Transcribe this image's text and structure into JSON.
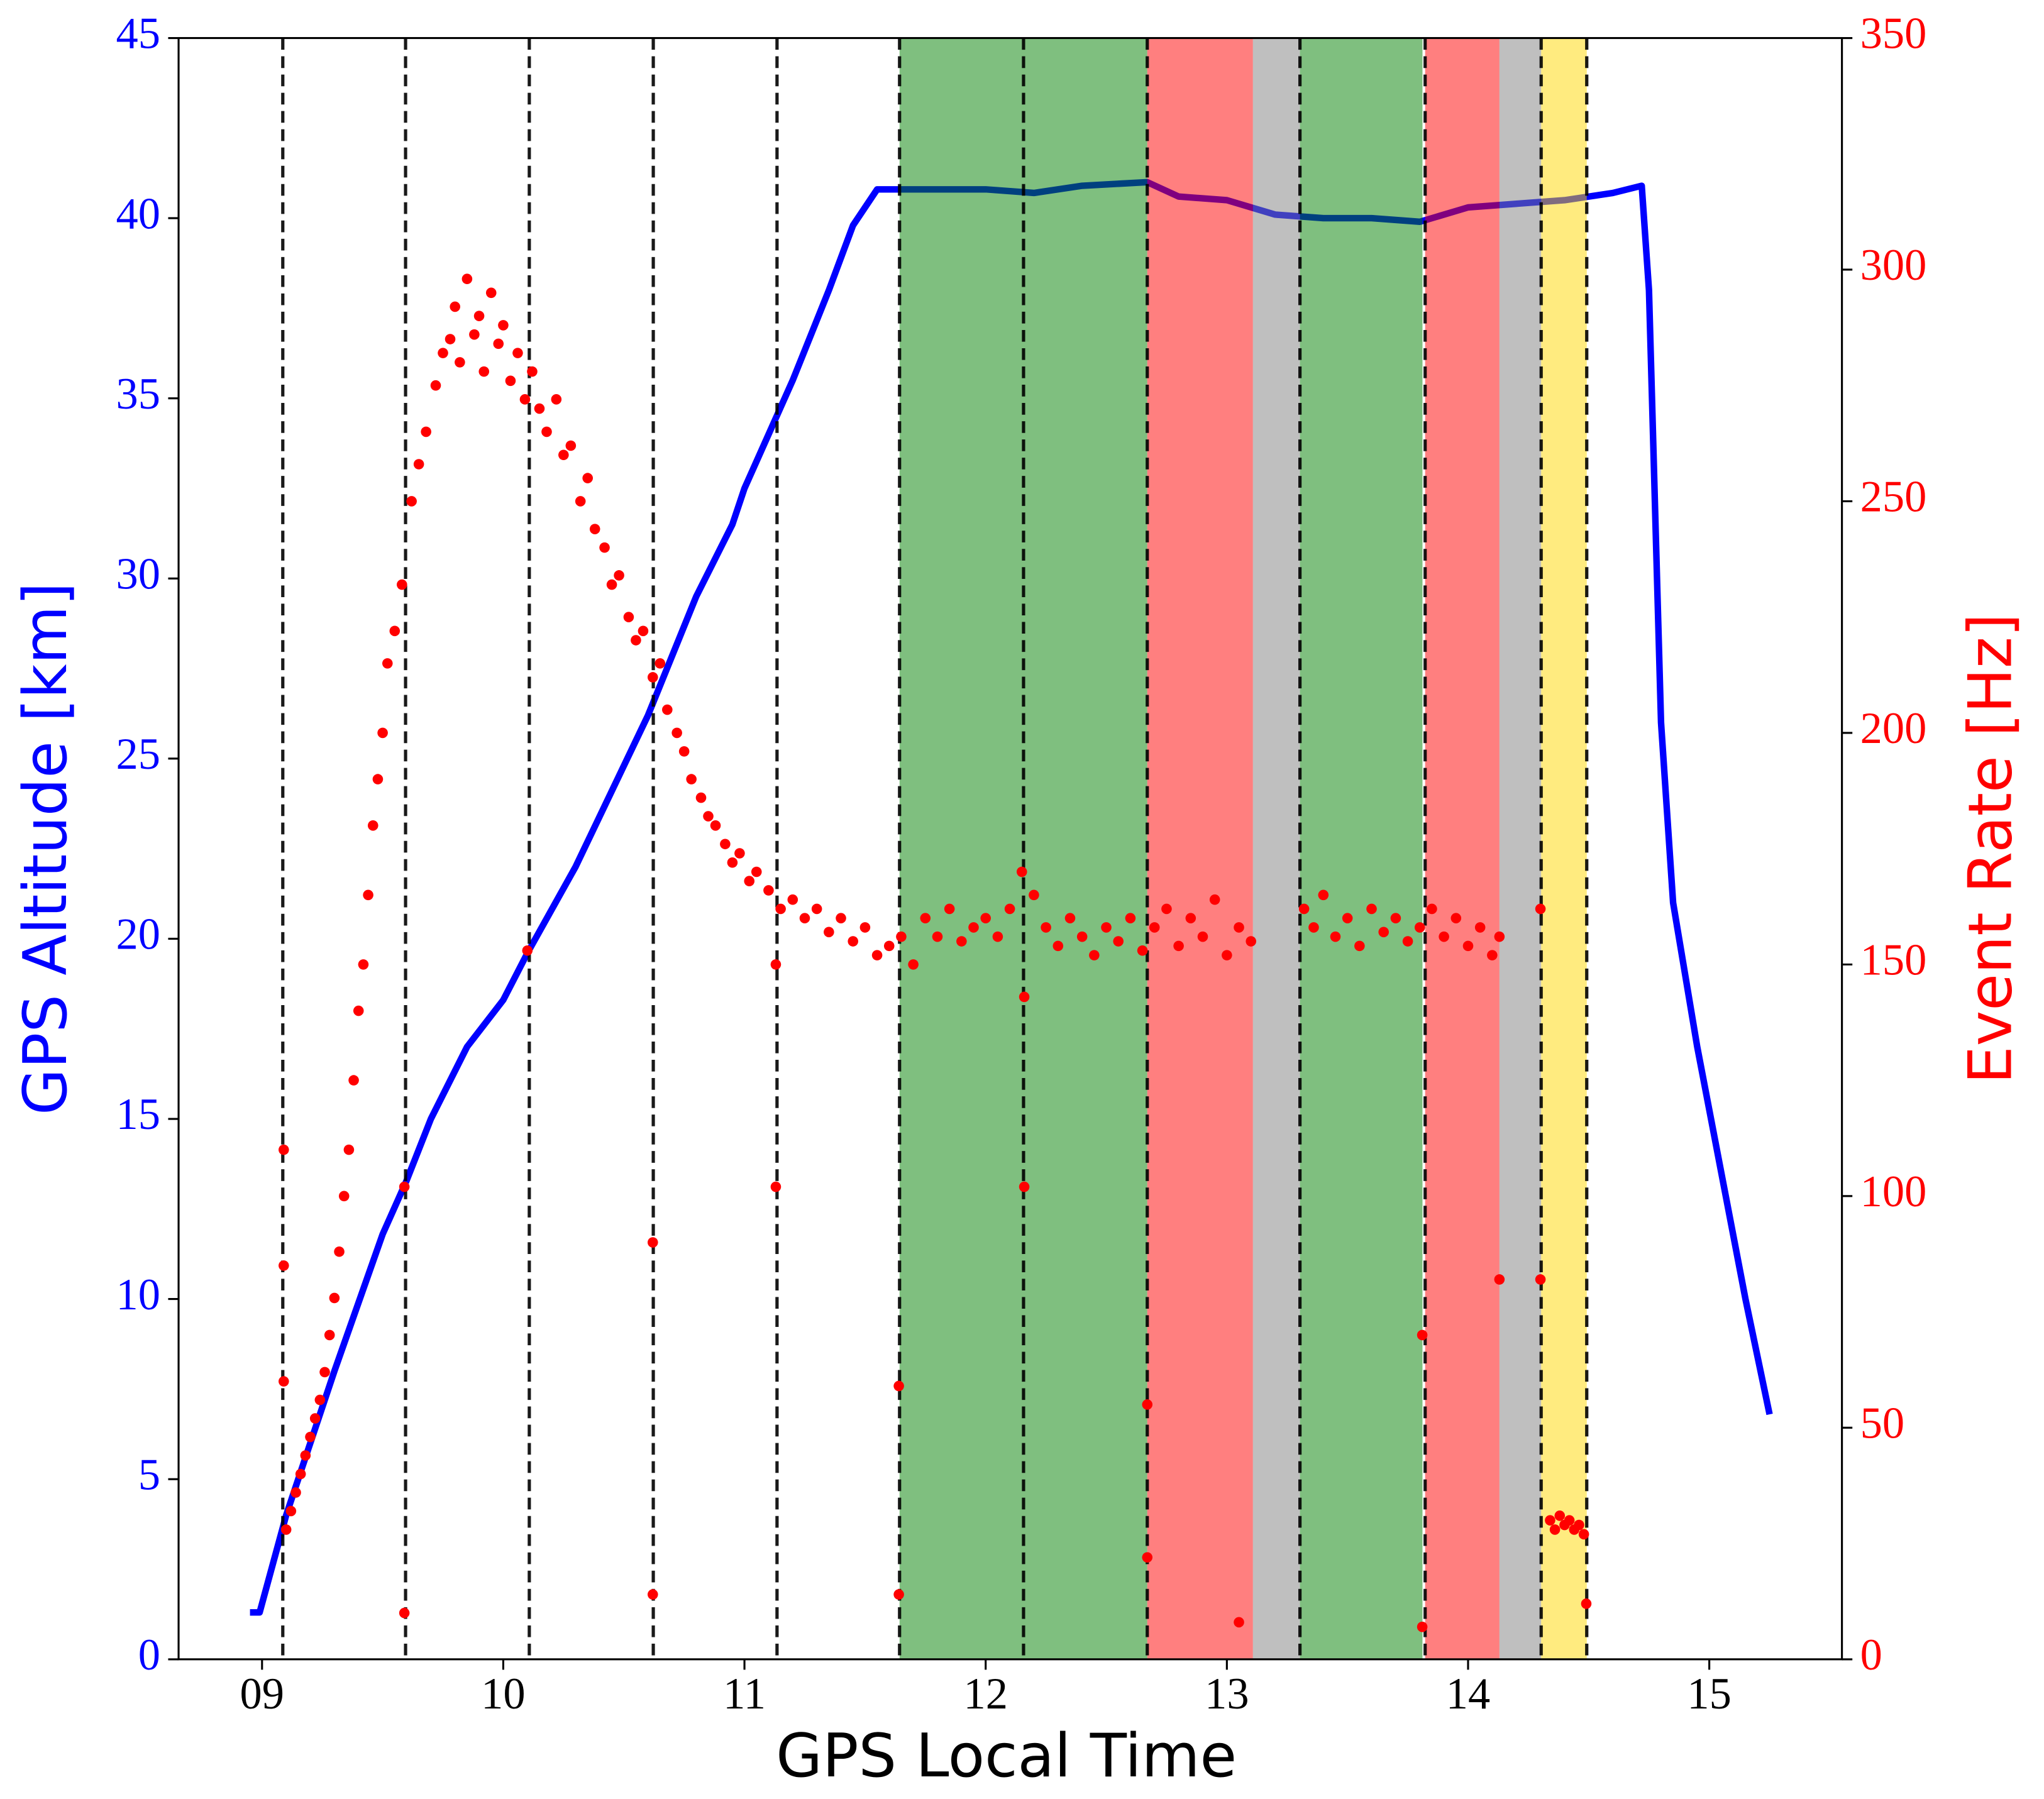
{
  "chart_data": {
    "type": "line",
    "xlabel": "GPS Local Time",
    "ylabel": "GPS Altitude [km]",
    "y2label": "Event Rate [Hz]",
    "ylabel_color": "#0000ff",
    "y2label_color": "#ff0000",
    "xlim": [
      8.654,
      15.55
    ],
    "ylim": [
      0,
      45
    ],
    "y2lim": [
      0,
      350
    ],
    "xticks": [
      {
        "value": 9,
        "label": "09"
      },
      10,
      11,
      12,
      13,
      14,
      15
    ],
    "yticks": [
      0,
      5,
      10,
      15,
      20,
      25,
      30,
      35,
      40,
      45
    ],
    "y2ticks": [
      0,
      50,
      100,
      150,
      200,
      250,
      300,
      350
    ],
    "regions": [
      {
        "start": 11.643,
        "end": 12.67,
        "color": "rgba(0,128,0,0.5)"
      },
      {
        "start": 12.67,
        "end": 13.108,
        "color": "rgba(255,0,0,0.5)"
      },
      {
        "start": 13.108,
        "end": 13.303,
        "color": "rgba(128,128,128,0.5)"
      },
      {
        "start": 13.303,
        "end": 13.811,
        "color": "rgba(0,128,0,0.5)"
      },
      {
        "start": 13.822,
        "end": 14.13,
        "color": "rgba(255,0,0,0.5)"
      },
      {
        "start": 14.13,
        "end": 14.303,
        "color": "rgba(128,128,128,0.5)"
      },
      {
        "start": 14.303,
        "end": 14.492,
        "color": "rgba(255,215,0,0.5)"
      }
    ],
    "vlines": [
      9.086,
      9.595,
      10.108,
      10.622,
      11.135,
      11.643,
      12.157,
      12.67,
      13.303,
      13.822,
      14.303,
      14.492
    ],
    "vline_color": "#000000",
    "series": [
      {
        "type": "line",
        "color": "#0000ff",
        "axis": "y",
        "x": [
          8.95,
          8.99,
          9.1,
          9.3,
          9.5,
          9.6,
          9.7,
          9.85,
          10.0,
          10.1,
          10.3,
          10.5,
          10.6,
          10.8,
          10.95,
          11.0,
          11.1,
          11.2,
          11.35,
          11.45,
          11.55,
          11.6,
          11.8,
          12.0,
          12.2,
          12.4,
          12.67,
          12.8,
          13.0,
          13.2,
          13.4,
          13.6,
          13.8,
          14.0,
          14.2,
          14.4,
          14.6,
          14.72,
          14.75,
          14.8,
          14.85,
          14.95,
          15.05,
          15.15,
          15.25
        ],
        "values": [
          1.3,
          1.3,
          4.0,
          8.0,
          11.8,
          13.3,
          15.0,
          17.0,
          18.3,
          19.6,
          22.0,
          24.8,
          26.2,
          29.5,
          31.5,
          32.5,
          34.0,
          35.5,
          38.0,
          39.8,
          40.8,
          40.8,
          40.8,
          40.8,
          40.7,
          40.9,
          41.0,
          40.6,
          40.5,
          40.1,
          40.0,
          40.0,
          39.9,
          40.3,
          40.4,
          40.5,
          40.7,
          40.9,
          38.0,
          26.0,
          21.0,
          17.0,
          13.5,
          10.0,
          6.8
        ]
      },
      {
        "type": "scatter",
        "color": "#ff0000",
        "axis": "y2",
        "x": [
          9.1,
          9.12,
          9.14,
          9.16,
          9.18,
          9.2,
          9.22,
          9.24,
          9.26,
          9.28,
          9.3,
          9.32,
          9.34,
          9.36,
          9.38,
          9.4,
          9.42,
          9.44,
          9.46,
          9.48,
          9.5,
          9.52,
          9.55,
          9.58,
          9.62,
          9.65,
          9.68,
          9.72,
          9.75,
          9.78,
          9.8,
          9.82,
          9.85,
          9.88,
          9.9,
          9.92,
          9.95,
          9.98,
          10.0,
          10.03,
          10.06,
          10.09,
          10.12,
          10.15,
          10.18,
          10.22,
          10.25,
          10.28,
          10.32,
          10.35,
          10.38,
          10.42,
          10.45,
          10.48,
          10.52,
          10.55,
          10.58,
          10.62,
          10.65,
          10.68,
          10.72,
          10.75,
          10.78,
          10.82,
          10.85,
          10.88,
          10.92,
          10.95,
          10.98,
          11.02,
          11.05,
          11.1,
          11.15,
          11.2,
          11.25,
          11.3,
          11.35,
          11.4,
          11.45,
          11.5,
          11.55,
          11.6,
          11.65,
          11.7,
          11.75,
          11.8,
          11.85,
          11.9,
          11.95,
          12.0,
          12.05,
          12.1,
          12.15,
          12.2,
          12.25,
          12.3,
          12.35,
          12.4,
          12.45,
          12.5,
          12.55,
          12.6,
          12.65,
          12.7,
          12.75,
          12.8,
          12.85,
          12.9,
          12.95,
          13.0,
          13.05,
          13.1,
          13.32,
          13.36,
          13.4,
          13.45,
          13.5,
          13.55,
          13.6,
          13.65,
          13.7,
          13.75,
          13.8,
          13.85,
          13.9,
          13.95,
          14.0,
          14.05,
          14.1,
          14.13,
          14.34,
          14.36,
          14.38,
          14.4,
          14.42,
          14.44,
          14.46,
          14.48,
          9.09,
          9.09,
          9.09,
          9.59,
          9.59,
          10.1,
          10.62,
          10.62,
          11.13,
          11.13,
          11.64,
          11.64,
          12.16,
          12.16,
          12.67,
          12.67,
          13.05,
          13.81,
          13.81,
          14.13,
          14.3,
          14.3,
          14.49
        ],
        "values": [
          28,
          32,
          36,
          40,
          44,
          48,
          52,
          56,
          62,
          70,
          78,
          88,
          100,
          110,
          125,
          140,
          150,
          165,
          180,
          190,
          200,
          215,
          222,
          232,
          250,
          258,
          265,
          275,
          282,
          285,
          292,
          280,
          298,
          286,
          290,
          278,
          295,
          284,
          288,
          276,
          282,
          272,
          278,
          270,
          265,
          272,
          260,
          262,
          250,
          255,
          244,
          240,
          232,
          234,
          225,
          220,
          222,
          212,
          215,
          205,
          200,
          196,
          190,
          186,
          182,
          180,
          176,
          172,
          174,
          168,
          170,
          166,
          162,
          164,
          160,
          162,
          157,
          160,
          155,
          158,
          152,
          154,
          156,
          150,
          160,
          156,
          162,
          155,
          158,
          160,
          156,
          162,
          170,
          165,
          158,
          154,
          160,
          156,
          152,
          158,
          155,
          160,
          153,
          158,
          162,
          154,
          160,
          156,
          164,
          152,
          158,
          155,
          162,
          158,
          165,
          156,
          160,
          154,
          162,
          157,
          160,
          155,
          158,
          162,
          156,
          160,
          154,
          158,
          152,
          156,
          30,
          28,
          31,
          29,
          30,
          28,
          29,
          27,
          110,
          85,
          60,
          10,
          102,
          153,
          90,
          14,
          102,
          150,
          59,
          14,
          102,
          143,
          55,
          22,
          8,
          70,
          7,
          82,
          82,
          162,
          12
        ]
      }
    ]
  }
}
